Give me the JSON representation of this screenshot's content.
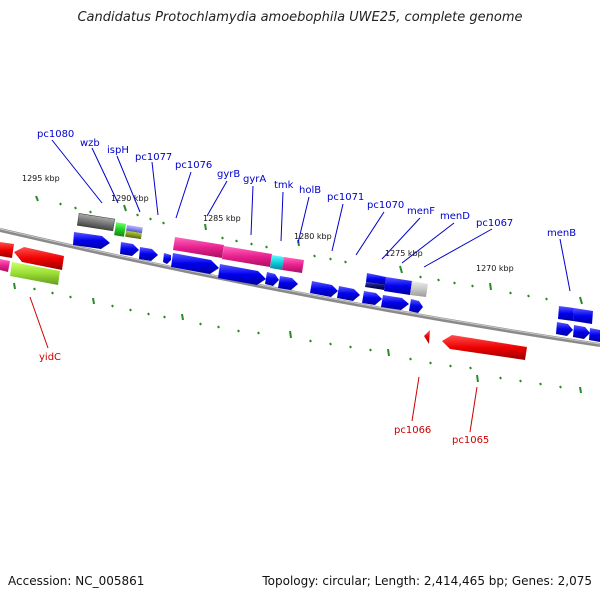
{
  "title": "Candidatus Protochlamydia amoebophila UWE25, complete genome",
  "footer": {
    "accession": "Accession: NC_005861",
    "topology": "Topology: circular; Length: 2,414,465 bp; Genes: 2,075"
  },
  "colors": {
    "forward_label": "#0000cc",
    "reverse_label": "#cc0000",
    "backbone": "#888888",
    "tick": "#2a8a2a"
  },
  "kbp_labels": [
    "1295 kbp",
    "1290 kbp",
    "1285 kbp",
    "1280 kbp",
    "1275 kbp",
    "1270 kbp"
  ],
  "forward_genes": [
    "pc1080",
    "wzb",
    "ispH",
    "pc1077",
    "pc1076",
    "gyrB",
    "gyrA",
    "tmk",
    "holB",
    "pc1071",
    "pc1070",
    "menF",
    "menD",
    "pc1067",
    "menB"
  ],
  "reverse_genes": [
    "yidC",
    "pc1066",
    "pc1065"
  ]
}
